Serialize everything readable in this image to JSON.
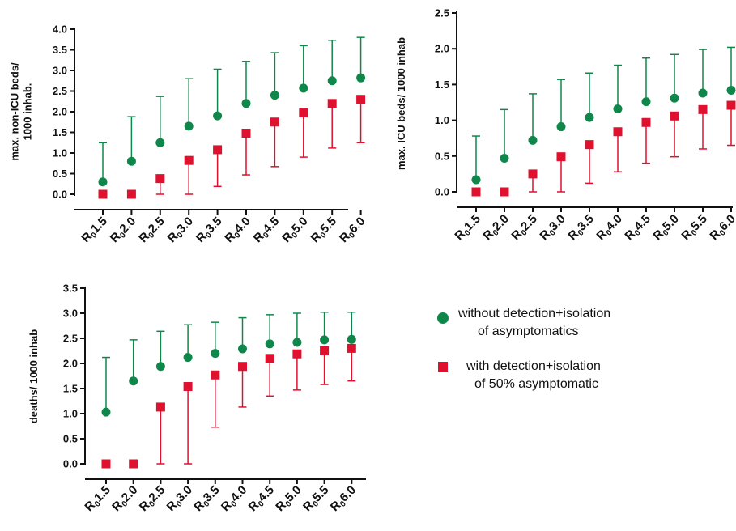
{
  "colors": {
    "green": "#10874a",
    "red": "#e0102f",
    "axis": "#111111"
  },
  "legend": {
    "green_line1": "without detection+isolation",
    "green_line2": "of asymptomatics",
    "red_line1": "with detection+isolation",
    "red_line2": "of 50% asymptomatic"
  },
  "chart_data": [
    {
      "type": "scatter",
      "ylabel_line1": "max. non-ICU beds/",
      "ylabel_line2": "1000 inhab.",
      "categories": [
        {
          "main": "R",
          "sub": "0",
          "num": "1.5"
        },
        {
          "main": "R",
          "sub": "0",
          "num": "2.0"
        },
        {
          "main": "R",
          "sub": "0",
          "num": "2.5"
        },
        {
          "main": "R",
          "sub": "0",
          "num": "3.0"
        },
        {
          "main": "R",
          "sub": "0",
          "num": "3.5"
        },
        {
          "main": "R",
          "sub": "0",
          "num": "4.0"
        },
        {
          "main": "R",
          "sub": "0",
          "num": "4.5"
        },
        {
          "main": "R",
          "sub": "0",
          "num": "5.0"
        },
        {
          "main": "R",
          "sub": "0",
          "num": "5.5"
        },
        {
          "main": "R",
          "sub": "0",
          "num": "6.0"
        }
      ],
      "ylim": [
        0,
        4
      ],
      "yticks": [
        "0.0",
        "0.5",
        "1.0",
        "1.5",
        "2.0",
        "2.5",
        "3.0",
        "3.5",
        "4.0"
      ],
      "series": [
        {
          "marker": "circle",
          "values": [
            0.3,
            0.8,
            1.25,
            1.65,
            1.9,
            2.2,
            2.4,
            2.57,
            2.75,
            2.82
          ],
          "upper": [
            1.25,
            1.88,
            2.37,
            2.8,
            3.03,
            3.22,
            3.43,
            3.6,
            3.73,
            3.8
          ]
        },
        {
          "marker": "square",
          "values": [
            0.0,
            0.0,
            0.38,
            0.82,
            1.08,
            1.48,
            1.75,
            1.97,
            2.2,
            2.3
          ],
          "lower": [
            0.0,
            0.0,
            0.0,
            0.0,
            0.19,
            0.47,
            0.67,
            0.9,
            1.12,
            1.25
          ]
        }
      ]
    },
    {
      "type": "scatter",
      "ylabel_line1": "max. ICU beds/ 1000 inhab",
      "ylabel_line2": "",
      "categories": [
        {
          "main": "R",
          "sub": "0",
          "num": "1.5"
        },
        {
          "main": "R",
          "sub": "0",
          "num": "2.0"
        },
        {
          "main": "R",
          "sub": "0",
          "num": "2.5"
        },
        {
          "main": "R",
          "sub": "0",
          "num": "3.0"
        },
        {
          "main": "R",
          "sub": "0",
          "num": "3.5"
        },
        {
          "main": "R",
          "sub": "0",
          "num": "4.0"
        },
        {
          "main": "R",
          "sub": "0",
          "num": "4.5"
        },
        {
          "main": "R",
          "sub": "0",
          "num": "5.0"
        },
        {
          "main": "R",
          "sub": "0",
          "num": "5.5"
        },
        {
          "main": "R",
          "sub": "0",
          "num": "6.0"
        }
      ],
      "ylim": [
        0,
        2.5
      ],
      "yticks": [
        "0.0",
        "0.5",
        "1.0",
        "1.5",
        "2.0",
        "2.5"
      ],
      "series": [
        {
          "marker": "circle",
          "values": [
            0.17,
            0.47,
            0.72,
            0.91,
            1.04,
            1.16,
            1.26,
            1.31,
            1.38,
            1.42
          ],
          "upper": [
            0.78,
            1.15,
            1.37,
            1.57,
            1.66,
            1.77,
            1.87,
            1.92,
            1.99,
            2.02
          ]
        },
        {
          "marker": "square",
          "values": [
            0.0,
            0.0,
            0.25,
            0.49,
            0.66,
            0.84,
            0.97,
            1.06,
            1.15,
            1.21
          ],
          "lower": [
            0.0,
            0.0,
            0.0,
            0.0,
            0.12,
            0.28,
            0.4,
            0.49,
            0.6,
            0.65
          ]
        }
      ]
    },
    {
      "type": "scatter",
      "ylabel_line1": "deaths/ 1000 inhab",
      "ylabel_line2": "",
      "categories": [
        {
          "main": "R",
          "sub": "0",
          "num": "1.5"
        },
        {
          "main": "R",
          "sub": "0",
          "num": "2.0"
        },
        {
          "main": "R",
          "sub": "0",
          "num": "2.5"
        },
        {
          "main": "R",
          "sub": "0",
          "num": "3.0"
        },
        {
          "main": "R",
          "sub": "0",
          "num": "3.5"
        },
        {
          "main": "R",
          "sub": "0",
          "num": "4.0"
        },
        {
          "main": "R",
          "sub": "0",
          "num": "4.5"
        },
        {
          "main": "R",
          "sub": "0",
          "num": "5.0"
        },
        {
          "main": "R",
          "sub": "0",
          "num": "5.5"
        },
        {
          "main": "R",
          "sub": "0",
          "num": "6.0"
        }
      ],
      "ylim": [
        0,
        3.5
      ],
      "yticks": [
        "0.0",
        "0.5",
        "1.0",
        "1.5",
        "2.0",
        "2.5",
        "3.0",
        "3.5"
      ],
      "series": [
        {
          "marker": "circle",
          "values": [
            1.03,
            1.65,
            1.94,
            2.12,
            2.2,
            2.29,
            2.39,
            2.42,
            2.47,
            2.48
          ],
          "upper": [
            2.12,
            2.47,
            2.64,
            2.77,
            2.82,
            2.91,
            2.97,
            3.0,
            3.02,
            3.02
          ]
        },
        {
          "marker": "square",
          "values": [
            0.0,
            0.0,
            1.13,
            1.54,
            1.77,
            1.94,
            2.1,
            2.19,
            2.25,
            2.3
          ],
          "lower": [
            0.0,
            0.0,
            0.0,
            0.0,
            0.73,
            1.13,
            1.35,
            1.47,
            1.58,
            1.65
          ]
        }
      ]
    }
  ]
}
